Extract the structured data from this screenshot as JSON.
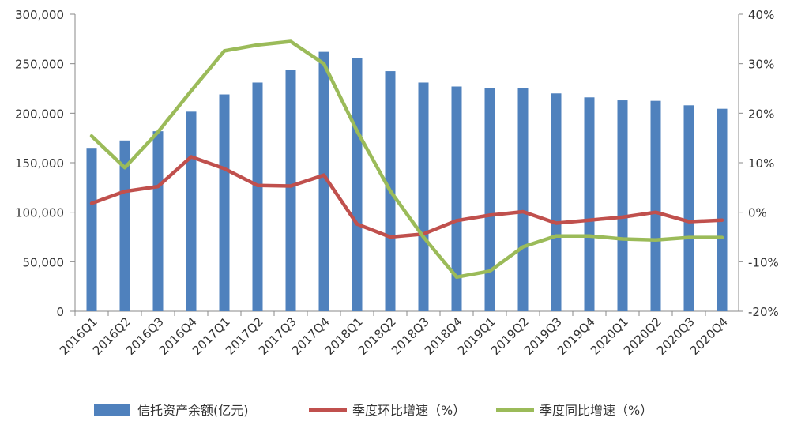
{
  "chart_data": {
    "type": "bar",
    "categories": [
      "2016Q1",
      "2016Q2",
      "2016Q3",
      "2016Q4",
      "2017Q1",
      "2017Q2",
      "2017Q3",
      "2017Q4",
      "2018Q1",
      "2018Q2",
      "2018Q3",
      "2018Q4",
      "2019Q1",
      "2019Q2",
      "2019Q3",
      "2019Q4",
      "2020Q1",
      "2020Q2",
      "2020Q3",
      "2020Q4"
    ],
    "series": [
      {
        "name": "信托资产余额(亿元)",
        "type": "bar",
        "axis": "left",
        "color": "#4f81bd",
        "values": [
          165000,
          172500,
          181800,
          201600,
          219000,
          231000,
          244000,
          262000,
          256000,
          242500,
          231000,
          227000,
          225000,
          225000,
          220000,
          216000,
          213000,
          212500,
          208000,
          204500
        ]
      },
      {
        "name": "季度环比增速（%）",
        "type": "line",
        "axis": "right",
        "color": "#c0504d",
        "values": [
          1.8,
          4.2,
          5.2,
          11.2,
          8.8,
          5.4,
          5.3,
          7.5,
          -2.4,
          -5.0,
          -4.4,
          -1.7,
          -0.6,
          0.1,
          -2.2,
          -1.6,
          -1.0,
          0.0,
          -1.9,
          -1.6
        ]
      },
      {
        "name": "季度同比增速（%）",
        "type": "line",
        "axis": "right",
        "color": "#9bbb59",
        "values": [
          15.4,
          9.0,
          16.2,
          24.5,
          32.6,
          33.8,
          34.5,
          30.0,
          16.4,
          4.3,
          -5.0,
          -13.1,
          -11.9,
          -7.0,
          -4.8,
          -4.8,
          -5.4,
          -5.6,
          -5.1,
          -5.1
        ]
      }
    ],
    "y_left": {
      "min": 0,
      "max": 300000,
      "ticks": [
        "0",
        "50,000",
        "100,000",
        "150,000",
        "200,000",
        "250,000",
        "300,000"
      ]
    },
    "y_right": {
      "min": -20,
      "max": 40,
      "ticks": [
        "-20%",
        "-10%",
        "0%",
        "10%",
        "20%",
        "30%",
        "40%"
      ]
    },
    "grid": false,
    "legend_position": "bottom"
  }
}
